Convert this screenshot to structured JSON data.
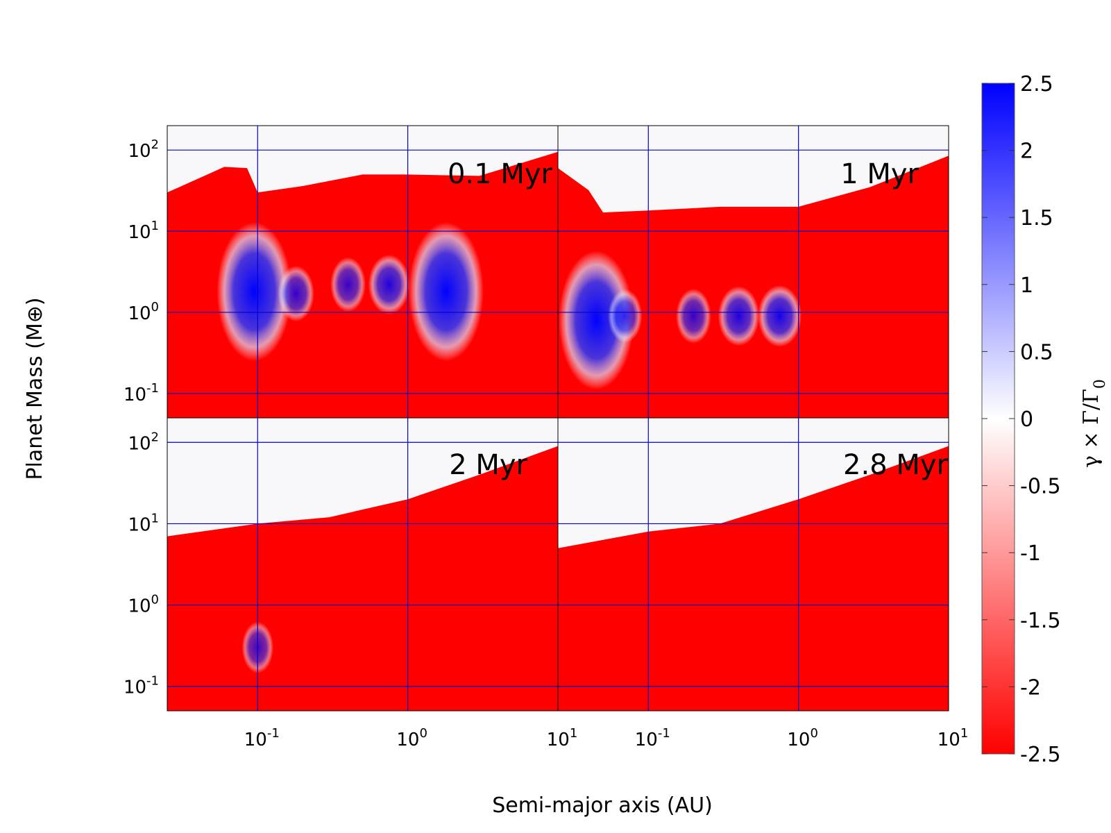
{
  "chart_data": {
    "type": "heatmap",
    "xlabel": "Semi-major axis (AU)",
    "ylabel": "Planet Mass (M⊕)",
    "x_scale": "log",
    "y_scale": "log",
    "xlim": [
      0.025,
      10
    ],
    "ylim": [
      0.05,
      200
    ],
    "x_ticks": [
      {
        "value": 0.1,
        "base": "10",
        "exp": "-1"
      },
      {
        "value": 1,
        "base": "10",
        "exp": "0"
      },
      {
        "value": 10,
        "base": "10",
        "exp": "1"
      }
    ],
    "y_ticks": [
      {
        "value": 0.1,
        "base": "10",
        "exp": "-1"
      },
      {
        "value": 1,
        "base": "10",
        "exp": "0"
      },
      {
        "value": 10,
        "base": "10",
        "exp": "1"
      },
      {
        "value": 100,
        "base": "10",
        "exp": "2"
      }
    ],
    "grid": true,
    "grid_color": "#0000cc",
    "colorbar": {
      "label": "γ × Γ/Γ",
      "label_sub": "0",
      "range": [
        -2.5,
        2.5
      ],
      "ticks": [
        "2.5",
        "2",
        "1.5",
        "1",
        "0.5",
        "0",
        "-0.5",
        "-1",
        "-1.5",
        "-2",
        "-2.5"
      ],
      "tick_values": [
        2.5,
        2,
        1.5,
        1,
        0.5,
        0,
        -0.5,
        -1,
        -1.5,
        -2,
        -2.5
      ],
      "colors": {
        "max": "#0000ff",
        "mid": "#ffffff",
        "min": "#ff0000"
      }
    },
    "panels": [
      {
        "label": "0.1 Myr",
        "boundary": [
          [
            0.025,
            30
          ],
          [
            0.06,
            62
          ],
          [
            0.085,
            60
          ],
          [
            0.1,
            30
          ],
          [
            0.2,
            36
          ],
          [
            0.5,
            50
          ],
          [
            1,
            50
          ],
          [
            3,
            48
          ],
          [
            10,
            95
          ]
        ],
        "regions": [
          {
            "x": 0.095,
            "y": 1.8,
            "level": 2.5
          },
          {
            "x": 0.18,
            "y": 1.7,
            "level": 1.4
          },
          {
            "x": 0.4,
            "y": 2.2,
            "level": 1.3
          },
          {
            "x": 0.75,
            "y": 2.2,
            "level": 1.8
          },
          {
            "x": 1.8,
            "y": 1.8,
            "level": 2.5
          }
        ]
      },
      {
        "label": "1 Myr",
        "boundary": [
          [
            0.025,
            60
          ],
          [
            0.04,
            32
          ],
          [
            0.05,
            17
          ],
          [
            0.1,
            18
          ],
          [
            0.3,
            20
          ],
          [
            1,
            20
          ],
          [
            3,
            35
          ],
          [
            10,
            85
          ]
        ],
        "regions": [
          {
            "x": 0.045,
            "y": 0.8,
            "level": 2.5
          },
          {
            "x": 0.07,
            "y": 0.9,
            "level": 1.2
          },
          {
            "x": 0.2,
            "y": 0.9,
            "level": 1.3
          },
          {
            "x": 0.4,
            "y": 0.9,
            "level": 1.8
          },
          {
            "x": 0.75,
            "y": 0.9,
            "level": 2.0
          }
        ]
      },
      {
        "label": "2 Myr",
        "boundary": [
          [
            0.025,
            7
          ],
          [
            0.1,
            10
          ],
          [
            0.3,
            12
          ],
          [
            1,
            20
          ],
          [
            3,
            40
          ],
          [
            10,
            90
          ]
        ],
        "regions": [
          {
            "x": 0.1,
            "y": 0.3,
            "level": 1.0
          }
        ]
      },
      {
        "label": "2.8 Myr",
        "boundary": [
          [
            0.025,
            5
          ],
          [
            0.1,
            8
          ],
          [
            0.3,
            10
          ],
          [
            1,
            20
          ],
          [
            3,
            40
          ],
          [
            10,
            90
          ]
        ],
        "regions": []
      }
    ]
  }
}
